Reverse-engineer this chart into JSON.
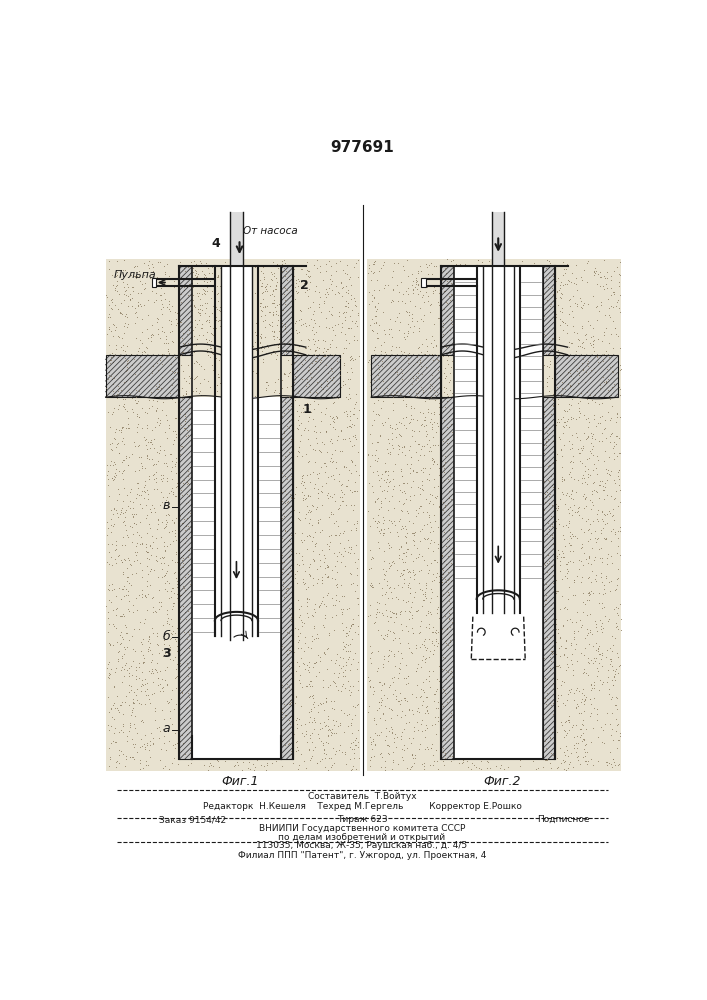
{
  "patent_number": "977691",
  "bg_color": "#f0ede8",
  "white": "#ffffff",
  "black": "#1a1a1a",
  "sand_color": "#d8cba8",
  "hatch_bg": "#c8c8c8",
  "fig1_label": "Фиг.1",
  "fig2_label": "Фиг.2",
  "label_1": "1",
  "label_2": "2",
  "label_3": "3",
  "label_4": "4",
  "label_a": "а",
  "label_b": "б",
  "label_v": "в",
  "label_pulpa": "Пульпа",
  "label_from_pump": "От насоса",
  "footer_line1": "Составитель  Т.Войтух",
  "footer_line2": "Редакторк  Н.Кешеля    Техред М.Гергель         Корректор Е.Рошко",
  "footer_line3": "Заказ 9154/42          Тираж 623                    Подписное",
  "footer_line4": "ВНИИПИ Государственного комитета СССР",
  "footer_line5": "по делам изобретений и открытий",
  "footer_line6": "113035, Москва, Ж-35, Раушская наб., д. 4/5",
  "footer_line7": "Филиал ППП \"Патент\", г. Ужгород, ул. Проектная, 4"
}
